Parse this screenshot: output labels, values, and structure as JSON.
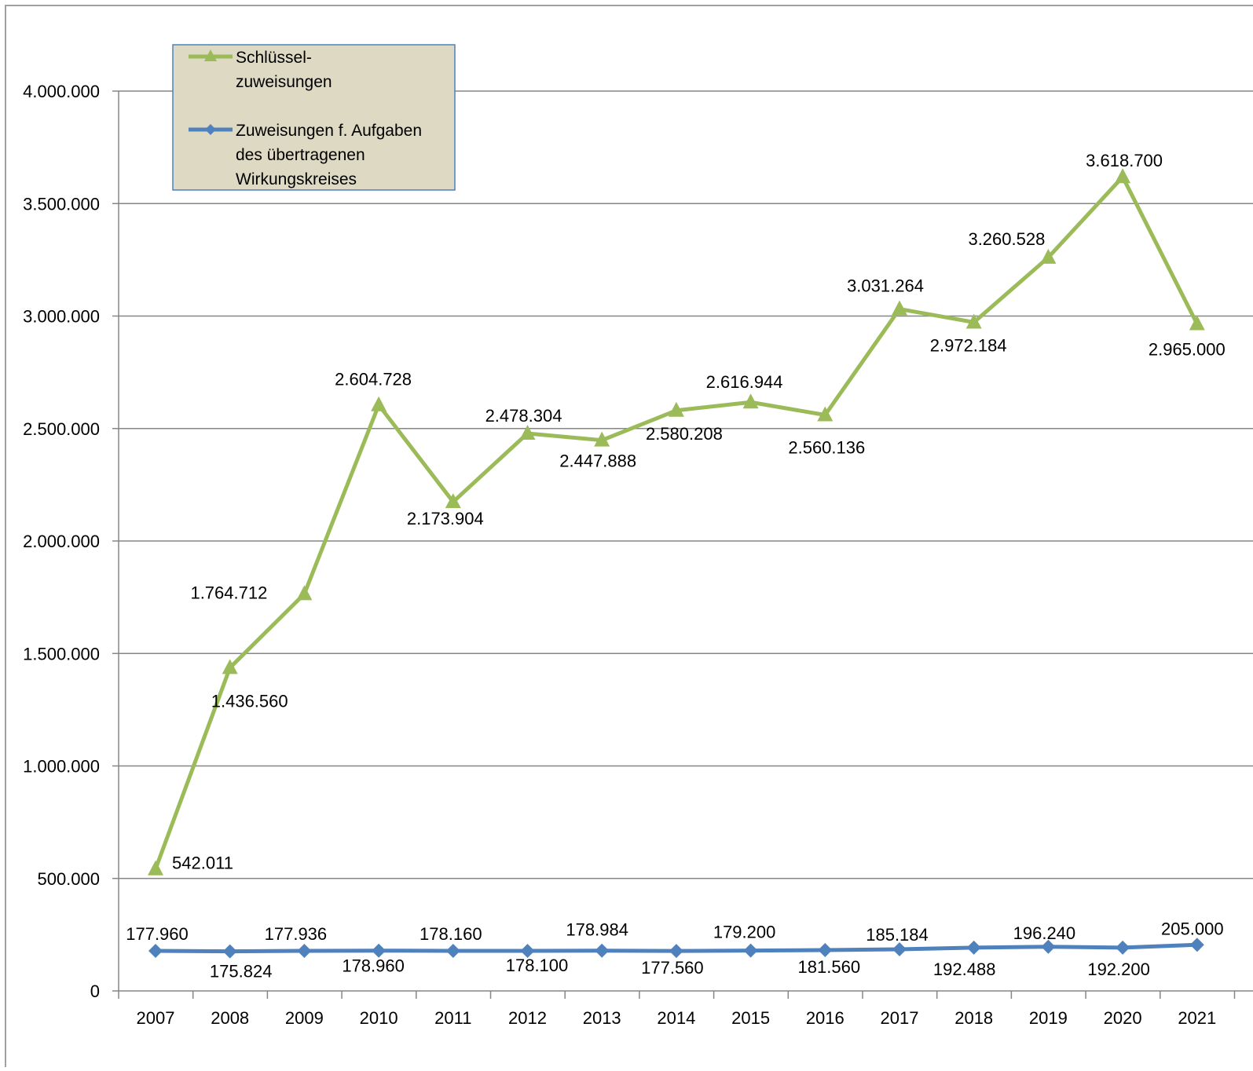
{
  "chart_data": {
    "type": "line",
    "categories": [
      "2007",
      "2008",
      "2009",
      "2010",
      "2011",
      "2012",
      "2013",
      "2014",
      "2015",
      "2016",
      "2017",
      "2018",
      "2019",
      "2020",
      "2021"
    ],
    "ylim": [
      0,
      4000000
    ],
    "y_ticks": [
      0,
      500000,
      1000000,
      1500000,
      2000000,
      2500000,
      3000000,
      3500000,
      4000000
    ],
    "y_tick_labels": [
      "0",
      "500.000",
      "1.000.000",
      "1.500.000",
      "2.000.000",
      "2.500.000",
      "3.000.000",
      "3.500.000",
      "4.000.000"
    ],
    "grid": true,
    "legend_position": "top-left",
    "legend_background": "#ddd9c3",
    "legend_border": "#4f81bd",
    "series": [
      {
        "name": "Schlüssel-zuweisungen",
        "legend_lines": [
          "Schlüssel-",
          "zuweisungen"
        ],
        "color": "#9bbb59",
        "marker": "triangle",
        "values": [
          542011,
          1436560,
          1764712,
          2604728,
          2173904,
          2478304,
          2447888,
          2580208,
          2616944,
          2560136,
          3031264,
          2972184,
          3260528,
          3618700,
          2965000
        ],
        "labels": [
          "542.011",
          "1.436.560",
          "1.764.712",
          "2.604.728",
          "2.173.904",
          "2.478.304",
          "2.447.888",
          "2.580.208",
          "2.616.944",
          "2.560.136",
          "3.031.264",
          "2.972.184",
          "3.260.528",
          "3.618.700",
          "2.965.000"
        ]
      },
      {
        "name": "Zuweisungen f. Aufgaben des übertragenen Wirkungskreises",
        "legend_lines": [
          "Zuweisungen f. Aufgaben",
          "des übertragenen",
          "Wirkungskreises"
        ],
        "color": "#4f81bd",
        "marker": "diamond",
        "values": [
          177960,
          175824,
          177936,
          178960,
          178160,
          178100,
          178984,
          177560,
          179200,
          181560,
          185184,
          192488,
          196240,
          192200,
          205000
        ],
        "labels": [
          "177.960",
          "175.824",
          "177.936",
          "178.960",
          "178.160",
          "178.100",
          "178.984",
          "177.560",
          "179.200",
          "181.560",
          "185.184",
          "192.488",
          "196.240",
          "192.200",
          "205.000"
        ]
      }
    ]
  }
}
